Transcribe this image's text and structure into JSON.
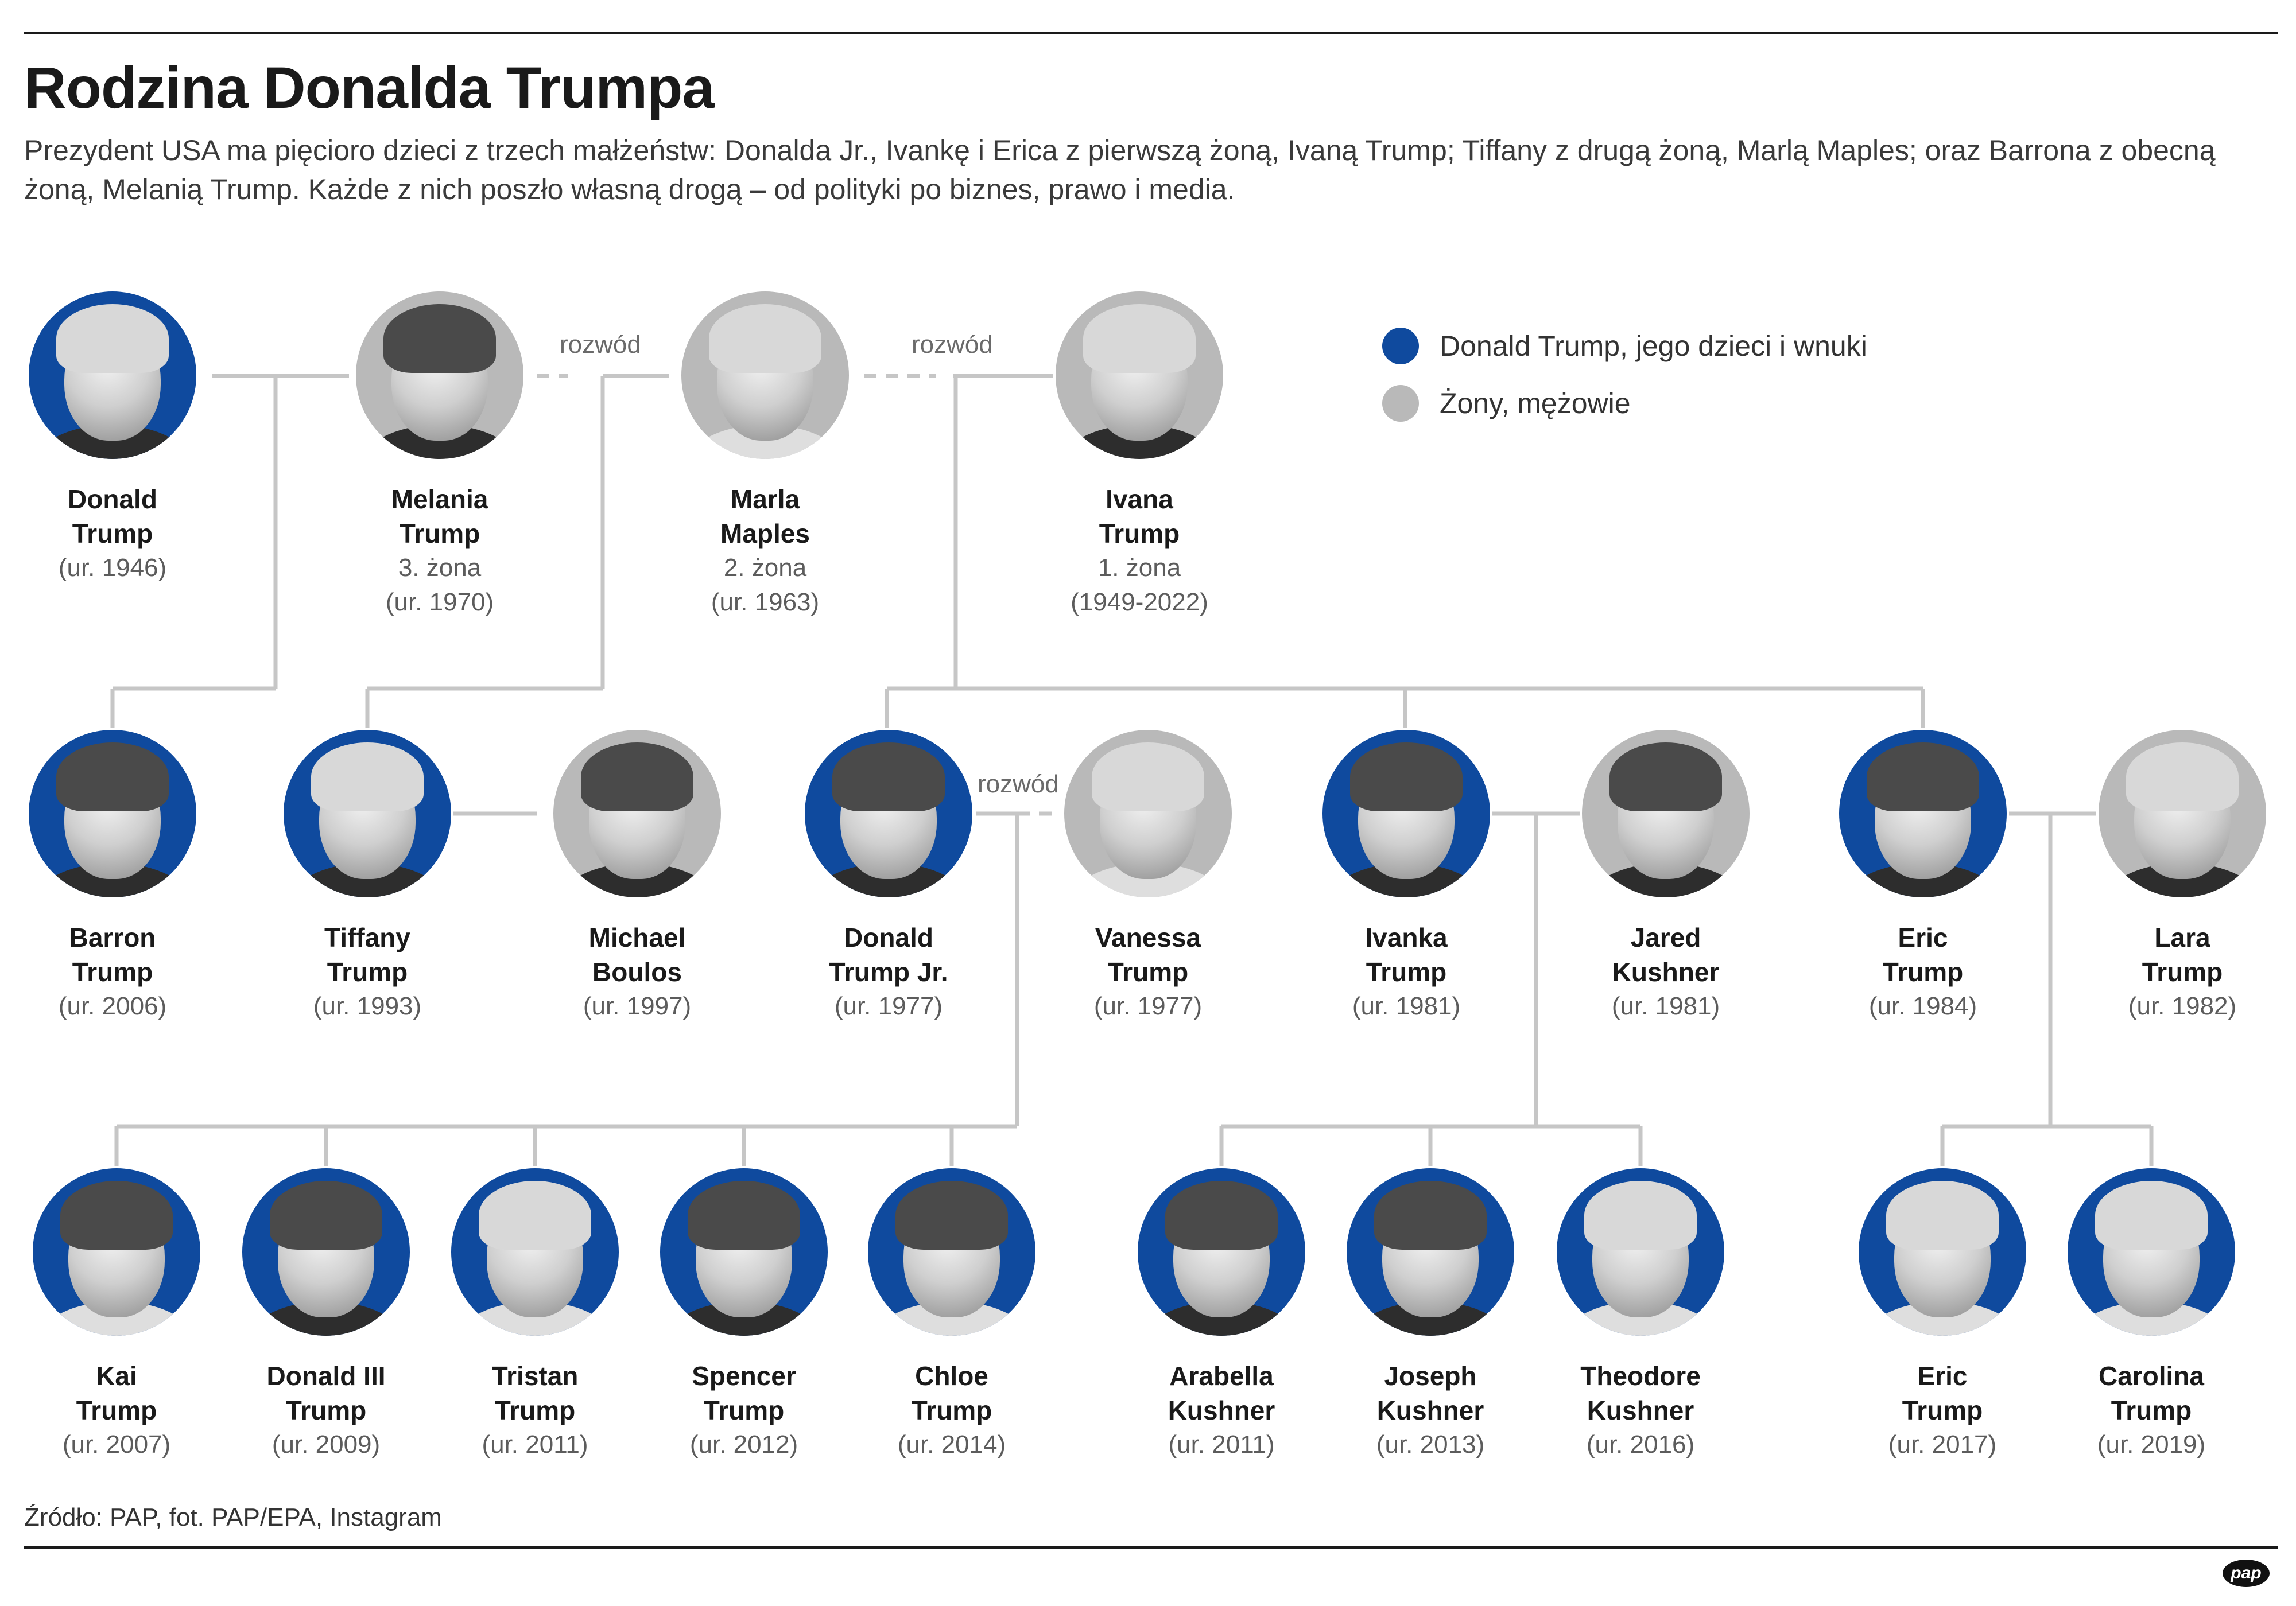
{
  "title": "Rodzina Donalda Trumpa",
  "subtitle": "Prezydent USA ma pięcioro dzieci z trzech małżeństw: Donalda Jr., Ivankę i Erica z pierwszą żoną, Ivaną Trump; Tiffany z drugą żoną, Marlą Maples; oraz Barrona z obecną żoną, Melanią Trump. Każde z nich poszło własną drogą – od polityki po biznes, prawo i media.",
  "legend": {
    "blue_label": "Donald Trump, jego dzieci i wnuki",
    "gray_label": "Żony, mężowie"
  },
  "colors": {
    "blue": "#0f4a9e",
    "gray": "#b9b9b9",
    "line": "#c6c6c6"
  },
  "divorce_label": "rozwód",
  "people": {
    "donald": {
      "name1": "Donald",
      "name2": "Trump",
      "info1": "(ur. 1946)",
      "info2": ""
    },
    "melania": {
      "name1": "Melania",
      "name2": "Trump",
      "info1": "3. żona",
      "info2": "(ur. 1970)"
    },
    "marla": {
      "name1": "Marla",
      "name2": "Maples",
      "info1": "2. żona",
      "info2": "(ur. 1963)"
    },
    "ivana": {
      "name1": "Ivana",
      "name2": "Trump",
      "info1": "1. żona",
      "info2": "(1949-2022)"
    },
    "barron": {
      "name1": "Barron",
      "name2": "Trump",
      "info1": "(ur. 2006)",
      "info2": ""
    },
    "tiffany": {
      "name1": "Tiffany",
      "name2": "Trump",
      "info1": "(ur. 1993)",
      "info2": ""
    },
    "michael": {
      "name1": "Michael",
      "name2": "Boulos",
      "info1": "(ur. 1997)",
      "info2": ""
    },
    "donjr": {
      "name1": "Donald",
      "name2": "Trump Jr.",
      "info1": "(ur. 1977)",
      "info2": ""
    },
    "vanessa": {
      "name1": "Vanessa",
      "name2": "Trump",
      "info1": "(ur. 1977)",
      "info2": ""
    },
    "ivanka": {
      "name1": "Ivanka",
      "name2": "Trump",
      "info1": "(ur. 1981)",
      "info2": ""
    },
    "jared": {
      "name1": "Jared",
      "name2": "Kushner",
      "info1": "(ur. 1981)",
      "info2": ""
    },
    "eric": {
      "name1": "Eric",
      "name2": "Trump",
      "info1": "(ur. 1984)",
      "info2": ""
    },
    "lara": {
      "name1": "Lara",
      "name2": "Trump",
      "info1": "(ur. 1982)",
      "info2": ""
    },
    "kai": {
      "name1": "Kai",
      "name2": "Trump",
      "info1": "(ur. 2007)",
      "info2": ""
    },
    "donald3": {
      "name1": "Donald III",
      "name2": "Trump",
      "info1": "(ur. 2009)",
      "info2": ""
    },
    "tristan": {
      "name1": "Tristan",
      "name2": "Trump",
      "info1": "(ur. 2011)",
      "info2": ""
    },
    "spencer": {
      "name1": "Spencer",
      "name2": "Trump",
      "info1": "(ur. 2012)",
      "info2": ""
    },
    "chloe": {
      "name1": "Chloe",
      "name2": "Trump",
      "info1": "(ur. 2014)",
      "info2": ""
    },
    "arabella": {
      "name1": "Arabella",
      "name2": "Kushner",
      "info1": "(ur. 2011)",
      "info2": ""
    },
    "joseph": {
      "name1": "Joseph",
      "name2": "Kushner",
      "info1": "(ur. 2013)",
      "info2": ""
    },
    "theodore": {
      "name1": "Theodore",
      "name2": "Kushner",
      "info1": "(ur. 2016)",
      "info2": ""
    },
    "eric2": {
      "name1": "Eric",
      "name2": "Trump",
      "info1": "(ur. 2017)",
      "info2": ""
    },
    "carolina": {
      "name1": "Carolina",
      "name2": "Trump",
      "info1": "(ur. 2019)",
      "info2": ""
    }
  },
  "source": "Źródło: PAP, fot. PAP/EPA, Instagram",
  "logo": "pap"
}
